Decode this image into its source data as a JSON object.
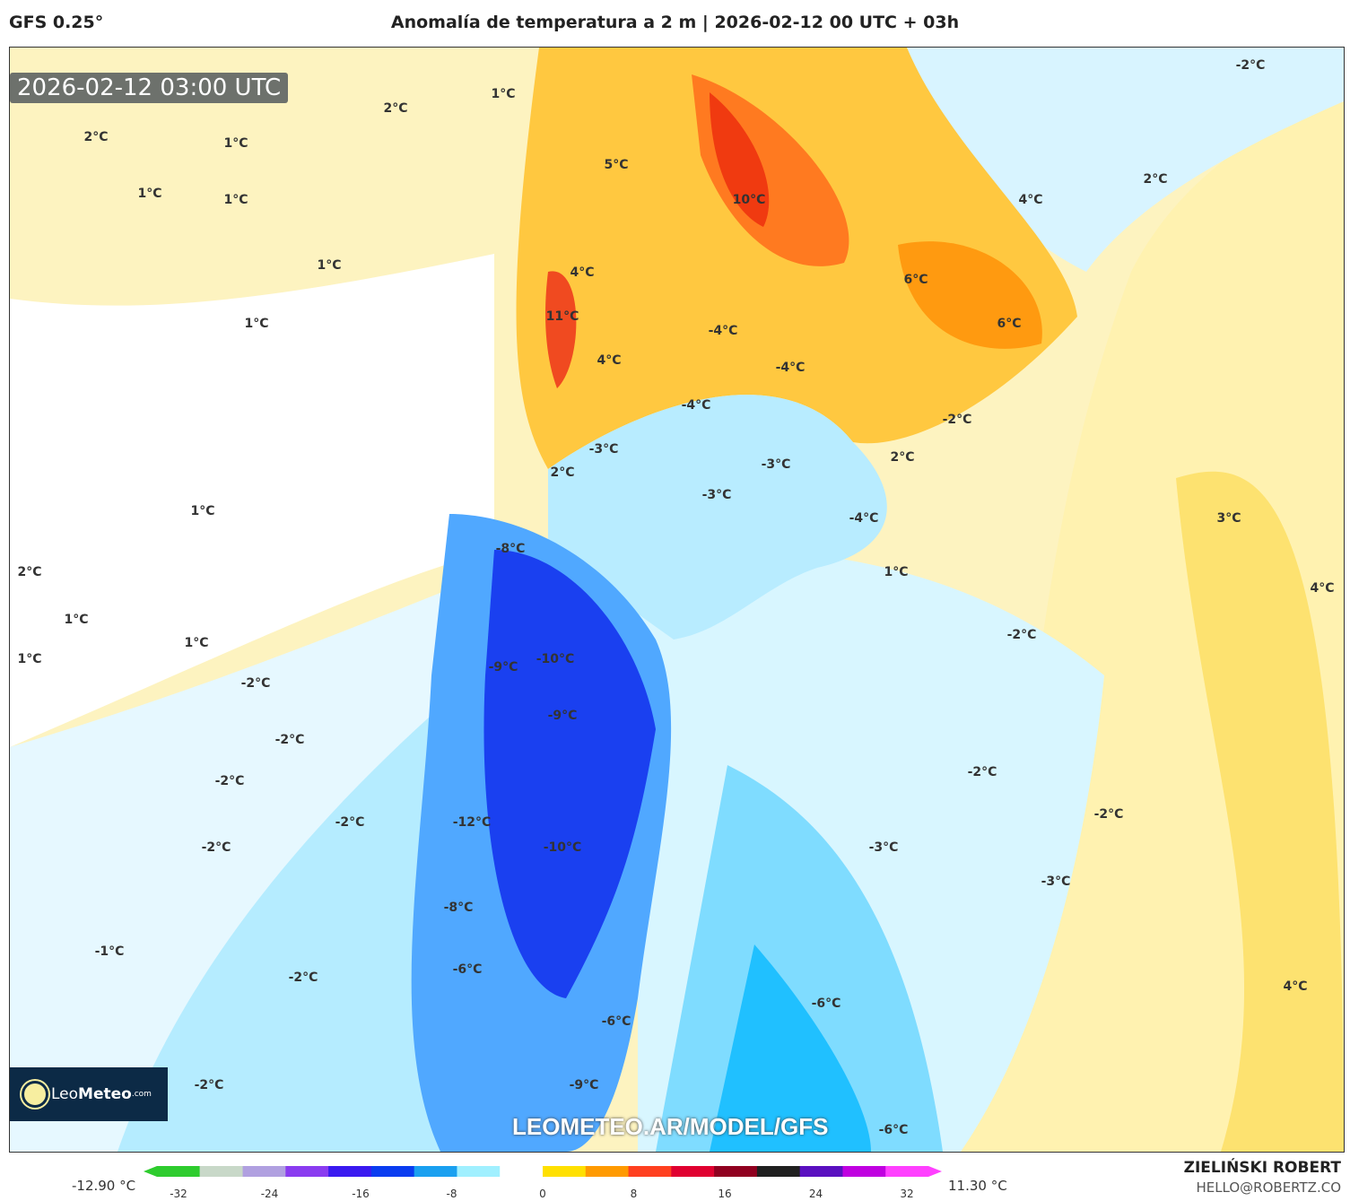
{
  "header": {
    "model": "GFS 0.25°",
    "title": "Anomalía de temperatura a 2 m | 2026-02-12 00 UTC + 03h"
  },
  "map": {
    "valid_time": "2026-02-12 03:00 UTC",
    "watermark_url": "LEOMETEO.AR/MODEL/GFS",
    "logo": {
      "brand_light": "Leo",
      "brand_bold": "Meteo",
      "suffix": ".com"
    },
    "contour_labels": [
      "1°C",
      "2°C",
      "2°C",
      "1°C",
      "1°C",
      "1°C",
      "1°C",
      "1°C",
      "1°C",
      "2°C",
      "1°C",
      "1°C",
      "1°C",
      "-2°C",
      "-2°C",
      "-2°C",
      "-2°C",
      "-2°C",
      "-1°C",
      "-2°C",
      "-2°C",
      "5°C",
      "10°C",
      "4°C",
      "11°C",
      "4°C",
      "-4°C",
      "-4°C",
      "-4°C",
      "-3°C",
      "2°C",
      "-3°C",
      "-3°C",
      "-4°C",
      "-8°C",
      "1°C",
      "-10°C",
      "-9°C",
      "-9°C",
      "-2°C",
      "-12°C",
      "-10°C",
      "-3°C",
      "-3°C",
      "-2°C",
      "-2°C",
      "-8°C",
      "-6°C",
      "-6°C",
      "-6°C",
      "-9°C",
      "-6°C",
      "4°C",
      "2°C",
      "6°C",
      "6°C",
      "-2°C",
      "2°C",
      "3°C",
      "4°C",
      "4°C",
      "-2°C"
    ]
  },
  "colorbar": {
    "min_label": "-12.90 °C",
    "max_label": "11.30 °C",
    "ticks": [
      "-32",
      "-24",
      "-16",
      "-8",
      "0",
      "8",
      "16",
      "24",
      "32"
    ],
    "colors": [
      "#2ecc2e",
      "#c8d8c8",
      "#b0a0e0",
      "#8a3cf0",
      "#3a1af0",
      "#0a3cf0",
      "#1aa0f0",
      "#a0f0ff",
      "#ffffff",
      "#ffe000",
      "#ff9a00",
      "#ff4020",
      "#e00030",
      "#900020",
      "#202020",
      "#5a10c0",
      "#c000e0",
      "#ff40ff"
    ]
  },
  "footer": {
    "author": "ZIELIŃSKI ROBERT",
    "email": "HELLO@ROBERTZ.CO"
  }
}
